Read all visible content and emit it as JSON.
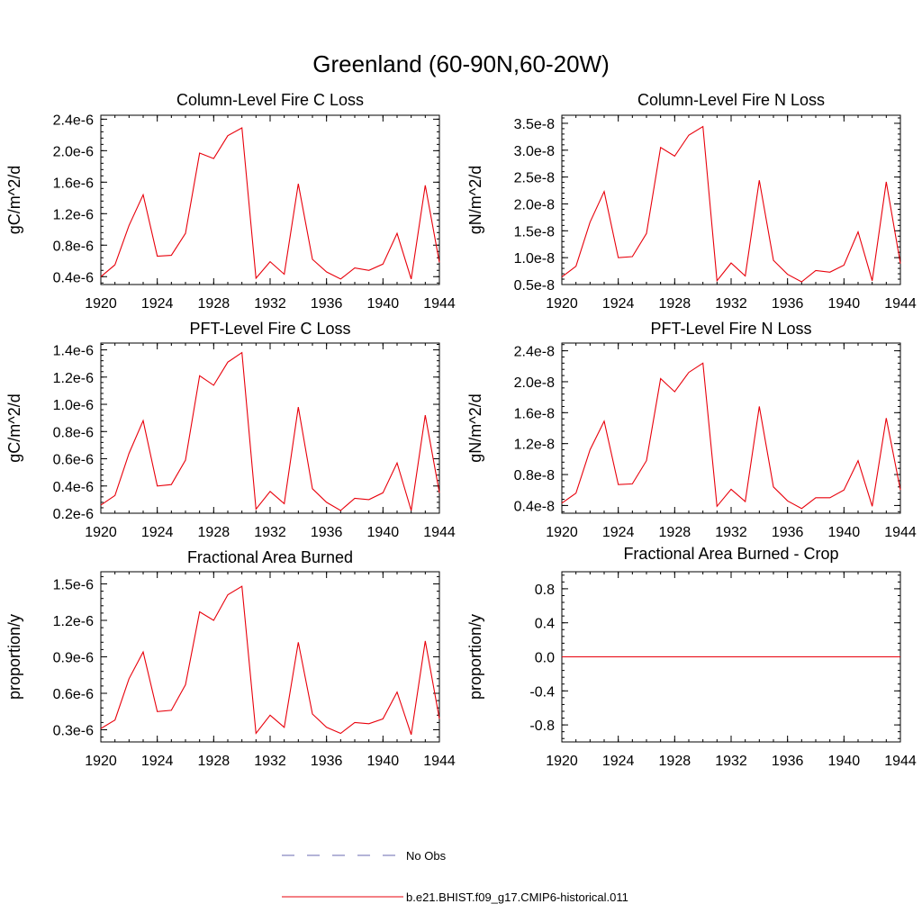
{
  "figure": {
    "title": "Greenland (60-90N,60-20W)",
    "colors": {
      "model_line": "#e8000b",
      "obs_line": "#6a6ab0",
      "axis": "#000000"
    }
  },
  "chart_data": [
    {
      "type": "line",
      "title": "Column-Level Fire C Loss",
      "ylabel": "gC/m^2/d",
      "xlim": [
        1920,
        1944
      ],
      "ylim": [
        3e-07,
        2.45e-06
      ],
      "x_ticks": [
        1920,
        1924,
        1928,
        1932,
        1936,
        1940,
        1944
      ],
      "y_ticks": [
        4e-07,
        8e-07,
        1.2e-06,
        1.6e-06,
        2e-06,
        2.4e-06
      ],
      "y_tick_labels": [
        "0.4e-6",
        "0.8e-6",
        "1.2e-6",
        "1.6e-6",
        "2.0e-6",
        "2.4e-6"
      ],
      "x": [
        1920,
        1921,
        1922,
        1923,
        1924,
        1925,
        1926,
        1927,
        1928,
        1929,
        1930,
        1931,
        1932,
        1933,
        1934,
        1935,
        1936,
        1937,
        1938,
        1939,
        1940,
        1941,
        1942,
        1943,
        1944
      ],
      "series": [
        {
          "name": "b.e21.BHIST.f09_g17.CMIP6-historical.011",
          "values": [
            4e-07,
            5.5e-07,
            1.05e-06,
            1.44e-06,
            6.6e-07,
            6.7e-07,
            9.5e-07,
            1.97e-06,
            1.9e-06,
            2.19e-06,
            2.29e-06,
            3.8e-07,
            5.9e-07,
            4.3e-07,
            1.58e-06,
            6.2e-07,
            4.6e-07,
            3.7e-07,
            5.1e-07,
            4.8e-07,
            5.6e-07,
            9.5e-07,
            3.7e-07,
            1.56e-06,
            5.8e-07
          ]
        }
      ]
    },
    {
      "type": "line",
      "title": "Column-Level Fire N Loss",
      "ylabel": "gN/m^2/d",
      "xlim": [
        1920,
        1944
      ],
      "ylim": [
        5e-09,
        3.65e-08
      ],
      "x_ticks": [
        1920,
        1924,
        1928,
        1932,
        1936,
        1940,
        1944
      ],
      "y_ticks": [
        5e-09,
        1e-08,
        1.5e-08,
        2e-08,
        2.5e-08,
        3e-08,
        3.5e-08
      ],
      "y_tick_labels": [
        "0.5e-8",
        "1.0e-8",
        "1.5e-8",
        "2.0e-8",
        "2.5e-8",
        "3.0e-8",
        "3.5e-8"
      ],
      "x": [
        1920,
        1921,
        1922,
        1923,
        1924,
        1925,
        1926,
        1927,
        1928,
        1929,
        1930,
        1931,
        1932,
        1933,
        1934,
        1935,
        1936,
        1937,
        1938,
        1939,
        1940,
        1941,
        1942,
        1943,
        1944
      ],
      "series": [
        {
          "name": "b.e21.BHIST.f09_g17.CMIP6-historical.011",
          "values": [
            6.4e-09,
            8.4e-09,
            1.66e-08,
            2.23e-08,
            1e-08,
            1.02e-08,
            1.45e-08,
            3.05e-08,
            2.89e-08,
            3.28e-08,
            3.44e-08,
            5.7e-09,
            9e-09,
            6.6e-09,
            2.44e-08,
            9.5e-09,
            6.9e-09,
            5.5e-09,
            7.6e-09,
            7.3e-09,
            8.6e-09,
            1.48e-08,
            5.7e-09,
            2.41e-08,
            8.9e-09
          ]
        }
      ]
    },
    {
      "type": "line",
      "title": "PFT-Level Fire C Loss",
      "ylabel": "gC/m^2/d",
      "xlim": [
        1920,
        1944
      ],
      "ylim": [
        2e-07,
        1.45e-06
      ],
      "x_ticks": [
        1920,
        1924,
        1928,
        1932,
        1936,
        1940,
        1944
      ],
      "y_ticks": [
        2e-07,
        4e-07,
        6e-07,
        8e-07,
        1e-06,
        1.2e-06,
        1.4e-06
      ],
      "y_tick_labels": [
        "0.2e-6",
        "0.4e-6",
        "0.6e-6",
        "0.8e-6",
        "1.0e-6",
        "1.2e-6",
        "1.4e-6"
      ],
      "x": [
        1920,
        1921,
        1922,
        1923,
        1924,
        1925,
        1926,
        1927,
        1928,
        1929,
        1930,
        1931,
        1932,
        1933,
        1934,
        1935,
        1936,
        1937,
        1938,
        1939,
        1940,
        1941,
        1942,
        1943,
        1944
      ],
      "series": [
        {
          "name": "b.e21.BHIST.f09_g17.CMIP6-historical.011",
          "values": [
            2.6e-07,
            3.3e-07,
            6.4e-07,
            8.8e-07,
            4e-07,
            4.1e-07,
            5.9e-07,
            1.21e-06,
            1.14e-06,
            1.31e-06,
            1.38e-06,
            2.3e-07,
            3.6e-07,
            2.7e-07,
            9.8e-07,
            3.8e-07,
            2.8e-07,
            2.2e-07,
            3.1e-07,
            3e-07,
            3.5e-07,
            5.7e-07,
            2.2e-07,
            9.2e-07,
            3.5e-07
          ]
        }
      ]
    },
    {
      "type": "line",
      "title": "PFT-Level Fire N Loss",
      "ylabel": "gN/m^2/d",
      "xlim": [
        1920,
        1944
      ],
      "ylim": [
        3e-09,
        2.5e-08
      ],
      "x_ticks": [
        1920,
        1924,
        1928,
        1932,
        1936,
        1940,
        1944
      ],
      "y_ticks": [
        4e-09,
        8e-09,
        1.2e-08,
        1.6e-08,
        2e-08,
        2.4e-08
      ],
      "y_tick_labels": [
        "0.4e-8",
        "0.8e-8",
        "1.2e-8",
        "1.6e-8",
        "2.0e-8",
        "2.4e-8"
      ],
      "x": [
        1920,
        1921,
        1922,
        1923,
        1924,
        1925,
        1926,
        1927,
        1928,
        1929,
        1930,
        1931,
        1932,
        1933,
        1934,
        1935,
        1936,
        1937,
        1938,
        1939,
        1940,
        1941,
        1942,
        1943,
        1944
      ],
      "series": [
        {
          "name": "b.e21.BHIST.f09_g17.CMIP6-historical.011",
          "values": [
            4.3e-09,
            5.6e-09,
            1.12e-08,
            1.49e-08,
            6.7e-09,
            6.8e-09,
            9.8e-09,
            2.04e-08,
            1.87e-08,
            2.12e-08,
            2.24e-08,
            3.9e-09,
            6.1e-09,
            4.5e-09,
            1.68e-08,
            6.4e-09,
            4.6e-09,
            3.6e-09,
            5e-09,
            5e-09,
            6e-09,
            9.8e-09,
            3.9e-09,
            1.53e-08,
            6e-09
          ]
        }
      ]
    },
    {
      "type": "line",
      "title": "Fractional Area Burned",
      "ylabel": "proportion/y",
      "xlim": [
        1920,
        1944
      ],
      "ylim": [
        2e-07,
        1.6e-06
      ],
      "x_ticks": [
        1920,
        1924,
        1928,
        1932,
        1936,
        1940,
        1944
      ],
      "y_ticks": [
        3e-07,
        6e-07,
        9e-07,
        1.2e-06,
        1.5e-06
      ],
      "y_tick_labels": [
        "0.3e-6",
        "0.6e-6",
        "0.9e-6",
        "1.2e-6",
        "1.5e-6"
      ],
      "x": [
        1920,
        1921,
        1922,
        1923,
        1924,
        1925,
        1926,
        1927,
        1928,
        1929,
        1930,
        1931,
        1932,
        1933,
        1934,
        1935,
        1936,
        1937,
        1938,
        1939,
        1940,
        1941,
        1942,
        1943,
        1944
      ],
      "series": [
        {
          "name": "b.e21.BHIST.f09_g17.CMIP6-historical.011",
          "values": [
            3.1e-07,
            3.8e-07,
            7.2e-07,
            9.4e-07,
            4.5e-07,
            4.6e-07,
            6.7e-07,
            1.27e-06,
            1.2e-06,
            1.41e-06,
            1.48e-06,
            2.7e-07,
            4.2e-07,
            3.2e-07,
            1.02e-06,
            4.3e-07,
            3.2e-07,
            2.7e-07,
            3.6e-07,
            3.5e-07,
            3.9e-07,
            6.1e-07,
            2.6e-07,
            1.03e-06,
            3.9e-07
          ]
        }
      ]
    },
    {
      "type": "line",
      "title": "Fractional Area Burned - Crop",
      "ylabel": "proportion/y",
      "xlim": [
        1920,
        1944
      ],
      "ylim": [
        -1.0,
        1.0
      ],
      "x_ticks": [
        1920,
        1924,
        1928,
        1932,
        1936,
        1940,
        1944
      ],
      "y_ticks": [
        -0.8,
        -0.4,
        0.0,
        0.4,
        0.8
      ],
      "y_tick_labels": [
        "-0.8",
        "-0.4",
        "0.0",
        "0.4",
        "0.8"
      ],
      "x": [
        1920,
        1921,
        1922,
        1923,
        1924,
        1925,
        1926,
        1927,
        1928,
        1929,
        1930,
        1931,
        1932,
        1933,
        1934,
        1935,
        1936,
        1937,
        1938,
        1939,
        1940,
        1941,
        1942,
        1943,
        1944
      ],
      "series": [
        {
          "name": "b.e21.BHIST.f09_g17.CMIP6-historical.011",
          "values": [
            0,
            0,
            0,
            0,
            0,
            0,
            0,
            0,
            0,
            0,
            0,
            0,
            0,
            0,
            0,
            0,
            0,
            0,
            0,
            0,
            0,
            0,
            0,
            0,
            0
          ]
        }
      ]
    }
  ],
  "legend": {
    "placement": "bottom-center",
    "entries": [
      {
        "label": "No Obs",
        "style": "dashed",
        "color": "#6a6ab0"
      },
      {
        "label": "b.e21.BHIST.f09_g17.CMIP6-historical.011",
        "style": "solid",
        "color": "#e8000b"
      }
    ]
  }
}
